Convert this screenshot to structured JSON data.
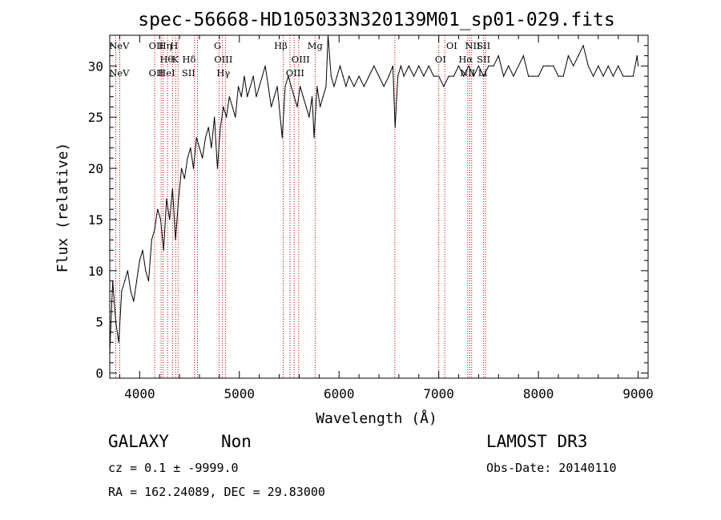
{
  "chart_data": {
    "type": "line",
    "title": "spec-56668-HD105033N320139M01_sp01-029.fits",
    "xlabel": "Wavelength (Å)",
    "ylabel": "Flux (relative)",
    "xlim": [
      3700,
      9100
    ],
    "ylim": [
      -0.5,
      33
    ],
    "xticks": [
      4000,
      5000,
      6000,
      7000,
      8000,
      9000
    ],
    "yticks": [
      0,
      5,
      10,
      15,
      20,
      25,
      30
    ],
    "grid": false,
    "series": [
      {
        "color": "#000000",
        "x": [
          3700,
          3730,
          3760,
          3790,
          3820,
          3850,
          3880,
          3910,
          3940,
          3970,
          4000,
          4030,
          4060,
          4090,
          4120,
          4150,
          4180,
          4210,
          4240,
          4270,
          4300,
          4330,
          4360,
          4390,
          4420,
          4450,
          4480,
          4510,
          4540,
          4570,
          4600,
          4630,
          4660,
          4690,
          4720,
          4750,
          4780,
          4810,
          4840,
          4870,
          4900,
          4930,
          4960,
          4990,
          5020,
          5050,
          5080,
          5110,
          5140,
          5170,
          5200,
          5230,
          5260,
          5290,
          5320,
          5350,
          5380,
          5410,
          5430,
          5460,
          5490,
          5520,
          5550,
          5580,
          5610,
          5640,
          5670,
          5700,
          5730,
          5750,
          5780,
          5810,
          5840,
          5870,
          5890,
          5920,
          5950,
          5980,
          6010,
          6040,
          6070,
          6100,
          6150,
          6200,
          6250,
          6300,
          6350,
          6400,
          6450,
          6500,
          6540,
          6562,
          6590,
          6620,
          6650,
          6700,
          6750,
          6800,
          6850,
          6900,
          6950,
          7000,
          7050,
          7100,
          7150,
          7200,
          7250,
          7300,
          7350,
          7400,
          7450,
          7500,
          7550,
          7600,
          7650,
          7700,
          7750,
          7800,
          7850,
          7900,
          7950,
          8000,
          8050,
          8100,
          8150,
          8200,
          8250,
          8300,
          8350,
          8400,
          8450,
          8500,
          8550,
          8600,
          8650,
          8700,
          8750,
          8800,
          8850,
          8900,
          8950,
          8990,
          9000
        ],
        "y": [
          2,
          9,
          5,
          3,
          8,
          9,
          10,
          8,
          7,
          9,
          11,
          12,
          10,
          9,
          13,
          14,
          16,
          15,
          12,
          17,
          15,
          18,
          13,
          17,
          20,
          19,
          21,
          22,
          20,
          23,
          22,
          21,
          23,
          24,
          22,
          25,
          20,
          24,
          26,
          25,
          27,
          26,
          25,
          28,
          27,
          29,
          27,
          28,
          29,
          27,
          28,
          29,
          30,
          28,
          26,
          27,
          28,
          25,
          23,
          28,
          29,
          28,
          27,
          26,
          28,
          27,
          26,
          25,
          27,
          23,
          28,
          26,
          27,
          28,
          33,
          29,
          28,
          29,
          30,
          29,
          28,
          29,
          28,
          29,
          28,
          29,
          30,
          29,
          28,
          29,
          30,
          24,
          29,
          30,
          29,
          30,
          29,
          30,
          29,
          30,
          29,
          29,
          28,
          29,
          29,
          30,
          29,
          30,
          29,
          30,
          29,
          30,
          30,
          31,
          29,
          30,
          29,
          30,
          31,
          29,
          29,
          29,
          30,
          30,
          30,
          29,
          29,
          31,
          30,
          31,
          32,
          30,
          29,
          30,
          29,
          30,
          29,
          30,
          29,
          29,
          29,
          31,
          30
        ]
      }
    ],
    "reference_lines": {
      "color": "#c00000",
      "wavelengths": [
        3760,
        3800,
        4150,
        4215,
        4235,
        4280,
        4330,
        4360,
        4385,
        4550,
        4580,
        4795,
        4830,
        4862,
        5440,
        5508,
        5550,
        5595,
        5760,
        6560,
        7000,
        7060,
        7290,
        7310,
        7330,
        7450,
        7470
      ]
    },
    "line_labels": [
      {
        "text": "NeV",
        "x": 3795,
        "row": "top"
      },
      {
        "text": "NeV",
        "x": 3795,
        "row": "low"
      },
      {
        "text": "OII",
        "x": 4165,
        "row": "top"
      },
      {
        "text": "Hη",
        "x": 4255,
        "row": "top"
      },
      {
        "text": "H",
        "x": 4345,
        "row": "top"
      },
      {
        "text": "Hθ",
        "x": 4270,
        "row": "mid"
      },
      {
        "text": "K",
        "x": 4358,
        "row": "mid"
      },
      {
        "text": "Hδ",
        "x": 4495,
        "row": "mid"
      },
      {
        "text": "OII",
        "x": 4165,
        "row": "low"
      },
      {
        "text": "HeI",
        "x": 4270,
        "row": "low"
      },
      {
        "text": "SII",
        "x": 4490,
        "row": "low"
      },
      {
        "text": "G",
        "x": 4782,
        "row": "top"
      },
      {
        "text": "OIII",
        "x": 4840,
        "row": "mid"
      },
      {
        "text": "Hγ",
        "x": 4840,
        "row": "low"
      },
      {
        "text": "Hβ",
        "x": 5415,
        "row": "top"
      },
      {
        "text": "Mg",
        "x": 5760,
        "row": "top"
      },
      {
        "text": "OIII",
        "x": 5615,
        "row": "mid"
      },
      {
        "text": "OIII",
        "x": 5560,
        "row": "low"
      },
      {
        "text": "OI",
        "x": 7130,
        "row": "top"
      },
      {
        "text": "OI",
        "x": 7018,
        "row": "mid"
      },
      {
        "text": "NII",
        "x": 7340,
        "row": "top"
      },
      {
        "text": "SII",
        "x": 7450,
        "row": "top"
      },
      {
        "text": "Hα",
        "x": 7270,
        "row": "mid"
      },
      {
        "text": "SII",
        "x": 7450,
        "row": "mid"
      },
      {
        "text": "NII",
        "x": 7290,
        "row": "low"
      },
      {
        "text": "Li",
        "x": 7440,
        "row": "low"
      }
    ]
  },
  "info": {
    "class": "GALAXY",
    "subclass": "Non",
    "survey": "LAMOST DR3",
    "cz": "cz = 0.1 ± -9999.0",
    "obs_date": "Obs-Date: 20140110",
    "radec": "RA = 162.24089, DEC =  29.83000"
  }
}
